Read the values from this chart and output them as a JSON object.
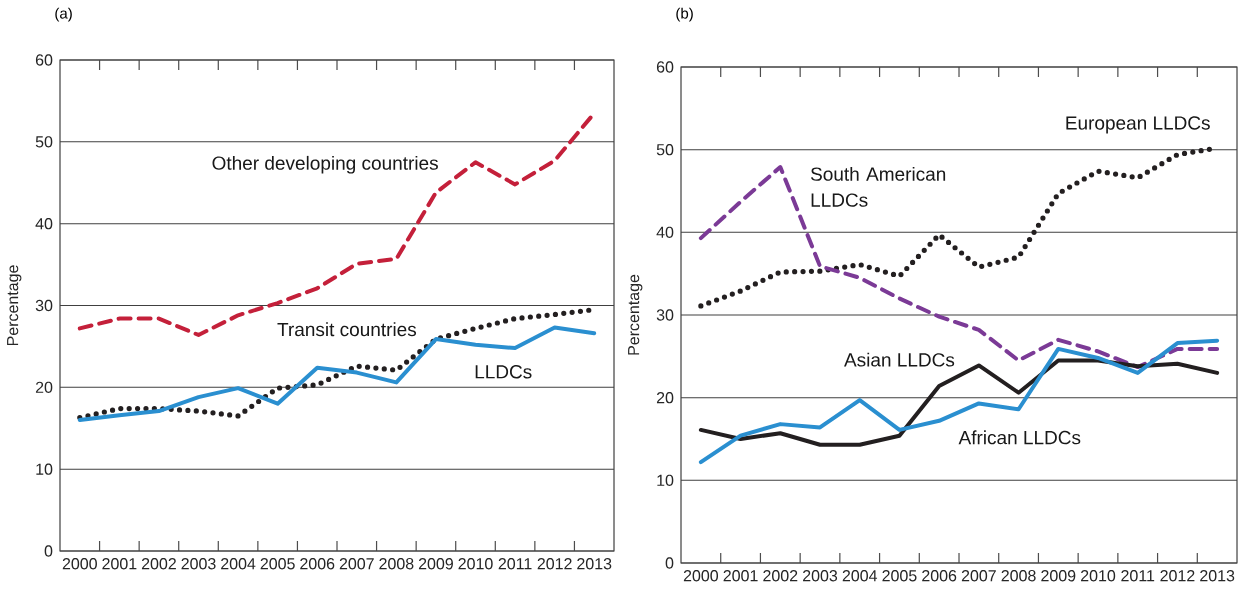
{
  "chart_data": [
    {
      "type": "line",
      "title": "(a)",
      "ylabel": "Percentage",
      "categories": [
        "2000",
        "2001",
        "2002",
        "2003",
        "2004",
        "2005",
        "2006",
        "2007",
        "2008",
        "2009",
        "2010",
        "2011",
        "2012",
        "2013"
      ],
      "ylim": [
        0,
        60
      ],
      "yticks": [
        0,
        10,
        20,
        30,
        40,
        50,
        60
      ],
      "grid": "y",
      "legend": false,
      "series": [
        {
          "name": "Other developing countries",
          "color": "#c4203a",
          "line_style": "dashed",
          "values": [
            27.2,
            28.4,
            28.4,
            26.4,
            28.8,
            30.3,
            32.1,
            35.1,
            35.7,
            43.8,
            47.5,
            44.8,
            47.7,
            53.5
          ]
        },
        {
          "name": "Transit countries",
          "color": "#231f20",
          "line_style": "dotted",
          "values": [
            16.3,
            17.4,
            17.4,
            17.1,
            16.5,
            19.9,
            20.3,
            22.6,
            22.1,
            25.9,
            27.2,
            28.4,
            28.9,
            29.5
          ]
        },
        {
          "name": "LLDCs",
          "color": "#2a8fd0",
          "line_style": "solid",
          "values": [
            16.0,
            16.6,
            17.1,
            18.8,
            19.9,
            18.0,
            22.4,
            21.8,
            20.6,
            25.9,
            25.2,
            24.8,
            27.3,
            26.6
          ]
        }
      ]
    },
    {
      "type": "line",
      "title": "(b)",
      "ylabel": "Percentage",
      "categories": [
        "2000",
        "2001",
        "2002",
        "2003",
        "2004",
        "2005",
        "2006",
        "2007",
        "2008",
        "2009",
        "2010",
        "2011",
        "2012",
        "2013"
      ],
      "ylim": [
        0,
        60
      ],
      "yticks": [
        0,
        10,
        20,
        30,
        40,
        50,
        60
      ],
      "grid": "y",
      "legend": false,
      "series": [
        {
          "name": "European LLDCs",
          "color": "#231f20",
          "line_style": "dotted",
          "values": [
            31.1,
            32.9,
            35.2,
            35.3,
            36.1,
            34.7,
            39.7,
            35.8,
            37.0,
            44.7,
            47.4,
            46.6,
            49.4,
            50.2
          ]
        },
        {
          "name": "South American LLDCs",
          "color": "#7b3a96",
          "line_style": "dashed",
          "values": [
            39.3,
            43.7,
            47.9,
            35.9,
            34.5,
            32.0,
            29.8,
            28.2,
            24.5,
            27.0,
            25.6,
            23.7,
            25.9,
            25.9
          ]
        },
        {
          "name": "Asian LLDCs",
          "color": "#231f20",
          "line_style": "solid",
          "values": [
            16.1,
            15.0,
            15.7,
            14.3,
            14.3,
            15.4,
            21.4,
            23.9,
            20.6,
            24.5,
            24.5,
            23.8,
            24.1,
            23.0
          ]
        },
        {
          "name": "African LLDCs",
          "color": "#2a8fd0",
          "line_style": "solid",
          "values": [
            12.2,
            15.4,
            16.8,
            16.4,
            19.7,
            16.1,
            17.2,
            19.3,
            18.6,
            25.9,
            24.8,
            23.0,
            26.6,
            26.9
          ]
        }
      ]
    }
  ]
}
